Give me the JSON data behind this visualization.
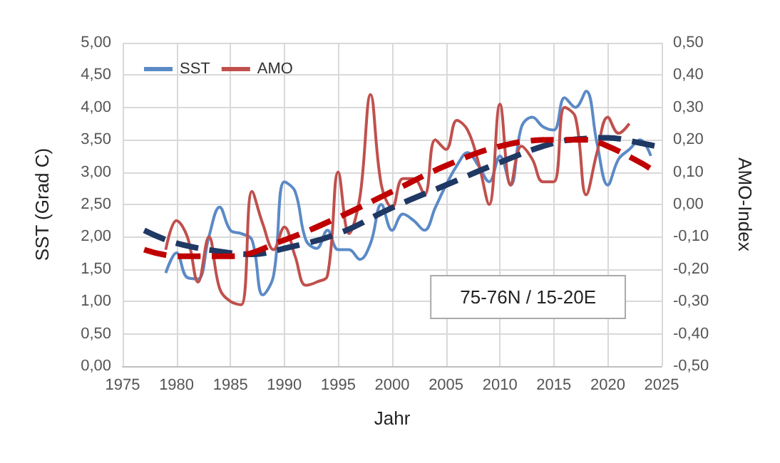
{
  "chart_data": {
    "type": "line",
    "xlabel": "Jahr",
    "ylabel": "SST (Grad C)",
    "y2label": "AMO-Index",
    "annotations": [
      "75-76N / 15-20E"
    ],
    "legend": "top left",
    "grid": true,
    "marker": "none",
    "line_style": "solid",
    "xlim": [
      1975,
      2025
    ],
    "xticks": [
      1975,
      1980,
      1985,
      1990,
      1995,
      2000,
      2005,
      2010,
      2015,
      2020,
      2025
    ],
    "ylim": [
      0,
      5
    ],
    "yticks": [
      {
        "value": 0,
        "label": "0,00"
      },
      {
        "value": 0.5,
        "label": "0,50"
      },
      {
        "value": 1,
        "label": "1,00"
      },
      {
        "value": 1.5,
        "label": "1,50"
      },
      {
        "value": 2,
        "label": "2,00"
      },
      {
        "value": 2.5,
        "label": "2,50"
      },
      {
        "value": 3,
        "label": "3,00"
      },
      {
        "value": 3.5,
        "label": "3,50"
      },
      {
        "value": 4,
        "label": "4,00"
      },
      {
        "value": 4.5,
        "label": "4,50"
      },
      {
        "value": 5,
        "label": "5,00"
      }
    ],
    "y2lim": [
      -0.5,
      0.5
    ],
    "y2ticks": [
      {
        "value": -0.5,
        "label": "-0,50"
      },
      {
        "value": -0.4,
        "label": "-0,40"
      },
      {
        "value": -0.3,
        "label": "-0,30"
      },
      {
        "value": -0.2,
        "label": "-0,20"
      },
      {
        "value": -0.1,
        "label": "-0,10"
      },
      {
        "value": 0,
        "label": "0,00"
      },
      {
        "value": 0.1,
        "label": "0,10"
      },
      {
        "value": 0.2,
        "label": "0,20"
      },
      {
        "value": 0.3,
        "label": "0,30"
      },
      {
        "value": 0.4,
        "label": "0,40"
      },
      {
        "value": 0.5,
        "label": "0,50"
      }
    ],
    "series": [
      {
        "name": "SST",
        "color": "#5b8ac6",
        "x": [
          1979,
          1980,
          1981,
          1982,
          1983,
          1984,
          1985,
          1986,
          1987,
          1988,
          1989,
          1990,
          1991,
          1992,
          1993,
          1994,
          1995,
          1996,
          1997,
          1998,
          1999,
          2000,
          2001,
          2002,
          2003,
          2004,
          2005,
          2006,
          2007,
          2008,
          2009,
          2010,
          2011,
          2012,
          2013,
          2014,
          2015,
          2016,
          2017,
          2018,
          2019,
          2020,
          2021,
          2022,
          2023,
          2024
        ],
        "values": [
          1.44,
          1.75,
          1.37,
          1.35,
          2.0,
          2.46,
          2.1,
          2.05,
          1.95,
          1.1,
          1.4,
          2.85,
          2.7,
          1.95,
          1.82,
          2.1,
          1.8,
          1.8,
          1.65,
          1.9,
          2.5,
          2.1,
          2.35,
          2.25,
          2.1,
          2.45,
          2.8,
          3.1,
          3.3,
          3.1,
          2.85,
          3.25,
          2.8,
          3.7,
          3.85,
          3.7,
          3.65,
          4.15,
          4.0,
          4.25,
          3.45,
          2.8,
          3.2,
          3.35,
          3.5,
          3.25
        ]
      },
      {
        "name": "AMO",
        "color": "#c0504d",
        "axis": "y2",
        "x": [
          1979,
          1980,
          1981,
          1982,
          1983,
          1984,
          1985,
          1986,
          1987,
          1988,
          1989,
          1990,
          1991,
          1992,
          1993,
          1994,
          1995,
          1996,
          1997,
          1998,
          1999,
          2000,
          2001,
          2002,
          2003,
          2004,
          2005,
          2006,
          2007,
          2008,
          2009,
          2010,
          2011,
          2012,
          2013,
          2014,
          2015,
          2016,
          2017,
          2018,
          2019,
          2020,
          2021,
          2022
        ],
        "values": [
          -0.14,
          -0.05,
          -0.1,
          -0.24,
          -0.1,
          -0.26,
          -0.3,
          -0.31,
          0.04,
          -0.06,
          -0.14,
          -0.07,
          -0.16,
          -0.25,
          -0.24,
          -0.22,
          0.1,
          -0.09,
          0.02,
          0.34,
          0.06,
          -0.01,
          0.08,
          0.08,
          0.03,
          0.2,
          0.17,
          0.26,
          0.23,
          0.13,
          0.0,
          0.31,
          0.06,
          0.18,
          0.14,
          0.07,
          0.07,
          0.3,
          0.27,
          0.03,
          0.16,
          0.27,
          0.22,
          0.25
        ]
      },
      {
        "color": "#1f3864",
        "line_style": "dashed",
        "x": [
          1977,
          1980,
          1985,
          1987,
          1990,
          1995,
          2000,
          2005,
          2010,
          2015,
          2018,
          2020,
          2023,
          2025
        ],
        "values": [
          2.1,
          1.9,
          1.75,
          1.73,
          1.82,
          2.05,
          2.45,
          2.8,
          3.15,
          3.45,
          3.52,
          3.53,
          3.45,
          3.38
        ]
      },
      {
        "color": "#c00000",
        "line_style": "dashed",
        "axis": "y2",
        "x": [
          1977,
          1980,
          1985,
          1990,
          1995,
          2000,
          2005,
          2010,
          2015,
          2018,
          2020,
          2023,
          2024
        ],
        "values": [
          -0.14,
          -0.16,
          -0.16,
          -0.11,
          -0.04,
          0.04,
          0.12,
          0.18,
          0.2,
          0.2,
          0.18,
          0.13,
          0.11
        ]
      }
    ]
  }
}
